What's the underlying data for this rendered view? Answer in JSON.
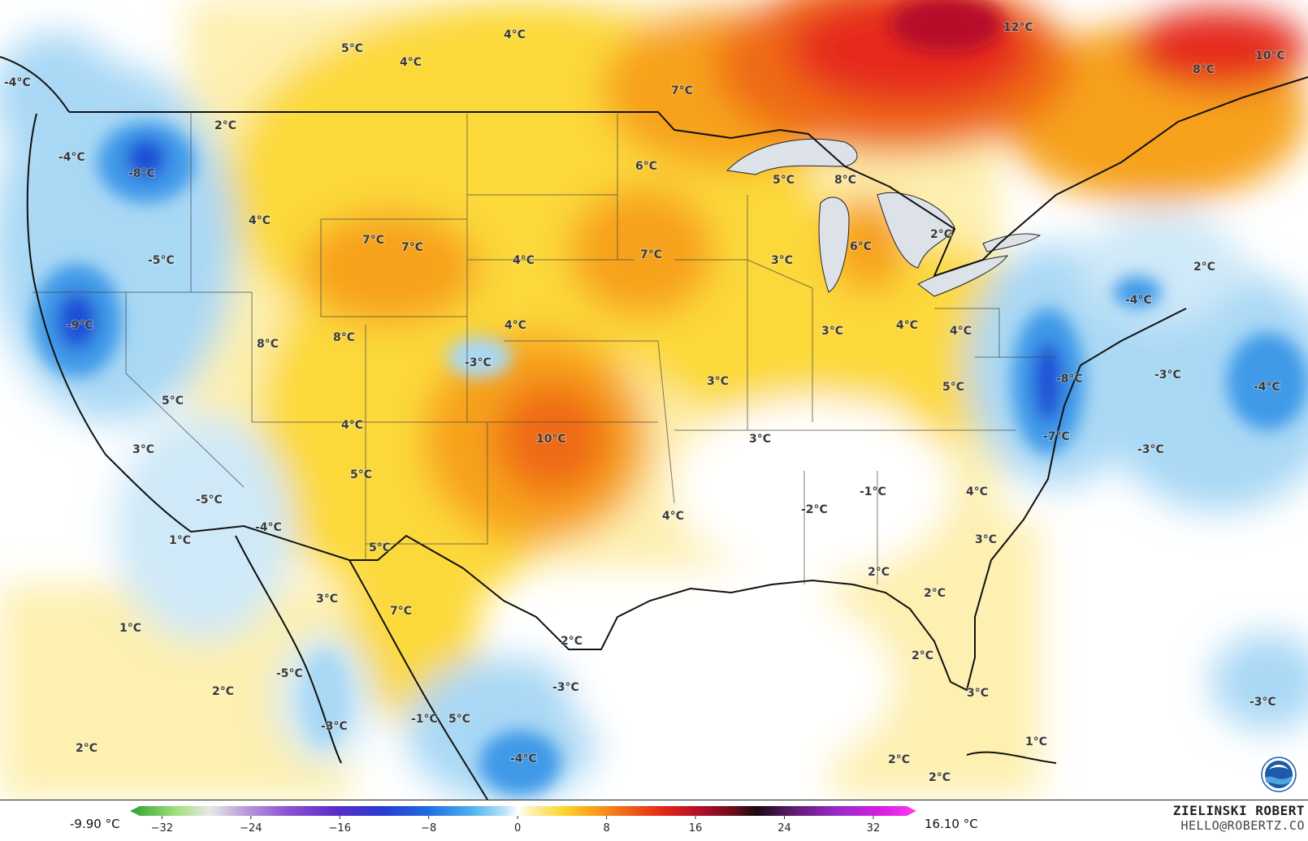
{
  "map": {
    "temperature_labels": [
      "-4°C",
      "5°C",
      "4°C",
      "4°C",
      "12°C",
      "10°C",
      "8°C",
      "7°C",
      "2°C",
      "-4°C",
      "-8°C",
      "-5°C",
      "4°C",
      "7°C",
      "7°C",
      "6°C",
      "5°C",
      "8°C",
      "7°C",
      "4°C",
      "3°C",
      "6°C",
      "2°C",
      "-9°C",
      "8°C",
      "8°C",
      "-3°C",
      "4°C",
      "3°C",
      "4°C",
      "4°C",
      "-4°C",
      "2°C",
      "5°C",
      "10°C",
      "3°C",
      "3°C",
      "5°C",
      "-3°C",
      "-4°C",
      "-8°C",
      "-7°C",
      "-3°C",
      "3°C",
      "4°C",
      "5°C",
      "-5°C",
      "-4°C",
      "1°C",
      "4°C",
      "-2°C",
      "-1°C",
      "4°C",
      "3°C",
      "5°C",
      "3°C",
      "7°C",
      "2°C",
      "1°C",
      "2°C",
      "2°C",
      "2°C",
      "2°C",
      "2°C",
      "-5°C",
      "-3°C",
      "-3°C",
      "-1°C",
      "5°C",
      "-4°C",
      "3°C",
      "2°C",
      "1°C",
      "-3°C",
      "2°C"
    ],
    "colors": {
      "cold_deep": "#1f4fd6",
      "cold_mid": "#3f9ae8",
      "cold_light": "#a9d8f5",
      "cold_pale": "#e3f3fb",
      "neutral": "#ffffff",
      "warm_pale": "#fdf0b0",
      "warm_light": "#fcd93a",
      "warm_mid": "#f7a21b",
      "warm_orange": "#ef6a19",
      "hot": "#e52a1c",
      "hot_deep": "#b8102a",
      "water_lake": "#dde2e8"
    },
    "map_logo": "noaa-logo"
  },
  "colorbar": {
    "min_value_label": "-9.90 °C",
    "max_value_label": "16.10 °C",
    "ticks": [
      "−32",
      "−24",
      "−16",
      "−8",
      "0",
      "8",
      "16",
      "24",
      "32"
    ],
    "range": [
      -34,
      35
    ],
    "stops": [
      {
        "v": -34,
        "c": "#2fa02f"
      },
      {
        "v": -30,
        "c": "#9ee07a"
      },
      {
        "v": -27,
        "c": "#e8e8e8"
      },
      {
        "v": -24,
        "c": "#b99fd8"
      },
      {
        "v": -20,
        "c": "#8a4fd0"
      },
      {
        "v": -16,
        "c": "#5a2fc8"
      },
      {
        "v": -12,
        "c": "#2a3ad0"
      },
      {
        "v": -8,
        "c": "#1f6ae0"
      },
      {
        "v": -4,
        "c": "#4fb2ee"
      },
      {
        "v": -1,
        "c": "#bfe6f8"
      },
      {
        "v": 0,
        "c": "#ffffff"
      },
      {
        "v": 1,
        "c": "#fdf2b8"
      },
      {
        "v": 4,
        "c": "#fcd52e"
      },
      {
        "v": 7,
        "c": "#f79a1b"
      },
      {
        "v": 10,
        "c": "#ef5c18"
      },
      {
        "v": 13,
        "c": "#e0241c"
      },
      {
        "v": 16,
        "c": "#b2102a"
      },
      {
        "v": 19,
        "c": "#6a0a1a"
      },
      {
        "v": 21,
        "c": "#1a0a10"
      },
      {
        "v": 24,
        "c": "#5a1a6a"
      },
      {
        "v": 28,
        "c": "#9a2ac8"
      },
      {
        "v": 32,
        "c": "#d81ee0"
      },
      {
        "v": 35,
        "c": "#ff3cf0"
      }
    ]
  },
  "credits": {
    "name": "ZIELINSKI ROBERT",
    "email": "HELLO@ROBERTZ.CO"
  }
}
